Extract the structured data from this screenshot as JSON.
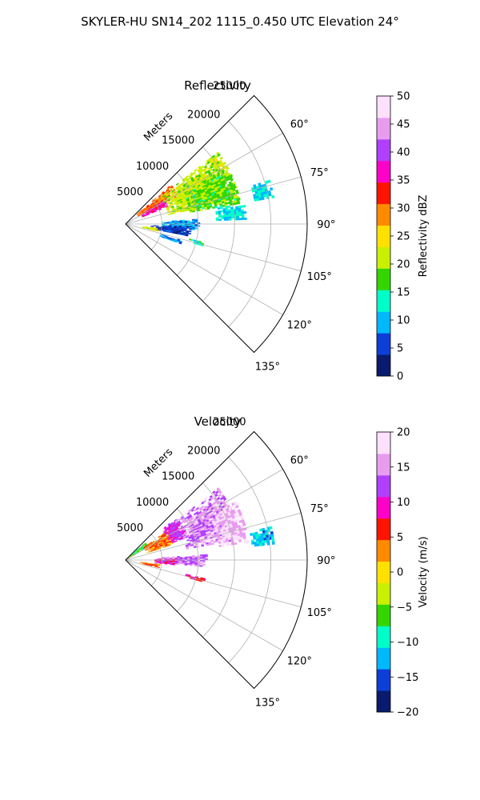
{
  "figure": {
    "title": "SKYLER-HU  SN14_202  1115_0.450 UTC Elevation 24°"
  },
  "chart_data": [
    {
      "type": "heatmap",
      "subtype": "polar-sector (PPI)",
      "title": "Reflectivity",
      "radial_label": "Meters",
      "radial_ticks": [
        5000,
        10000,
        15000,
        20000,
        25000
      ],
      "radial_tick_labels": [
        "5000",
        "10000",
        "15000",
        "20000",
        "25000"
      ],
      "azimuth_ticks": [
        60,
        75,
        90,
        105,
        120,
        135
      ],
      "azimuth_tick_labels": [
        "60°",
        "75°",
        "90°",
        "105°",
        "120°",
        "135°"
      ],
      "azimuth_range": [
        45,
        135
      ],
      "radial_range": [
        0,
        25000
      ],
      "grid": true,
      "colorbar": {
        "label": "Reflectivity dBZ",
        "range": [
          0,
          50
        ],
        "ticks": [
          0,
          5,
          10,
          15,
          20,
          25,
          30,
          35,
          40,
          45,
          50
        ],
        "tick_labels": [
          "0",
          "5",
          "10",
          "15",
          "20",
          "25",
          "30",
          "35",
          "40",
          "45",
          "50"
        ],
        "colormap": [
          "#0a1a6e",
          "#0d3fd6",
          "#00b8ff",
          "#00ffc8",
          "#33d600",
          "#c8f000",
          "#ffe000",
          "#ff8a00",
          "#ff1400",
          "#ff00c8",
          "#b040ff",
          "#e89cf0",
          "#fce0fc"
        ]
      },
      "echo_regions": [
        {
          "az": [
            49,
            62
          ],
          "r": [
            2000,
            8000
          ],
          "value": 30
        },
        {
          "az": [
            58,
            68
          ],
          "r": [
            2500,
            6500
          ],
          "value": 36
        },
        {
          "az": [
            52,
            78
          ],
          "r": [
            6000,
            16000
          ],
          "value": 21
        },
        {
          "az": [
            62,
            80
          ],
          "r": [
            9000,
            16000
          ],
          "value": 18
        },
        {
          "az": [
            80,
            88
          ],
          "r": [
            12500,
            16500
          ],
          "value": 12
        },
        {
          "az": [
            73,
            80
          ],
          "r": [
            18000,
            20500
          ],
          "value": 11
        },
        {
          "az": [
            86,
            95
          ],
          "r": [
            5000,
            10000
          ],
          "value": 9
        },
        {
          "az": [
            92,
            101
          ],
          "r": [
            3500,
            9000
          ],
          "value": 5
        },
        {
          "az": [
            97,
            103
          ],
          "r": [
            2000,
            4500
          ],
          "value": 22
        },
        {
          "az": [
            103,
            106
          ],
          "r": [
            9000,
            11000
          ],
          "value": 13
        },
        {
          "az": [
            106,
            110
          ],
          "r": [
            5000,
            8000
          ],
          "value": 8
        }
      ]
    },
    {
      "type": "heatmap",
      "subtype": "polar-sector (PPI)",
      "title": "Velocity",
      "radial_label": "Meters",
      "radial_ticks": [
        5000,
        10000,
        15000,
        20000,
        25000
      ],
      "radial_tick_labels": [
        "5000",
        "10000",
        "15000",
        "20000",
        "25000"
      ],
      "azimuth_ticks": [
        60,
        75,
        90,
        105,
        120,
        135
      ],
      "azimuth_tick_labels": [
        "60°",
        "75°",
        "90°",
        "105°",
        "120°",
        "135°"
      ],
      "azimuth_range": [
        45,
        135
      ],
      "radial_range": [
        0,
        25000
      ],
      "grid": true,
      "colorbar": {
        "label": "Velocity (m/s)",
        "range": [
          -20,
          20
        ],
        "ticks": [
          -20,
          -15,
          -10,
          -5,
          0,
          5,
          10,
          15,
          20
        ],
        "tick_labels": [
          "−20",
          "−15",
          "−10",
          "−5",
          "0",
          "5",
          "10",
          "15",
          "20"
        ],
        "colormap": [
          "#0a1a6e",
          "#0d3fd6",
          "#00b8ff",
          "#00ffc8",
          "#33d600",
          "#c8f000",
          "#ffe000",
          "#ff8a00",
          "#ff1400",
          "#ff00c8",
          "#b040ff",
          "#e89cf0",
          "#fce0fc"
        ]
      },
      "echo_regions": [
        {
          "az": [
            48,
            60
          ],
          "r": [
            500,
            3500
          ],
          "value": -6
        },
        {
          "az": [
            55,
            72
          ],
          "r": [
            3000,
            7000
          ],
          "value": 4
        },
        {
          "az": [
            50,
            70
          ],
          "r": [
            6500,
            9000
          ],
          "value": 11
        },
        {
          "az": [
            52,
            80
          ],
          "r": [
            8500,
            16000
          ],
          "value": 15
        },
        {
          "az": [
            62,
            82
          ],
          "r": [
            13000,
            17000
          ],
          "value": 17
        },
        {
          "az": [
            77,
            84
          ],
          "r": [
            17500,
            20500
          ],
          "value": -12
        },
        {
          "az": [
            86,
            95
          ],
          "r": [
            5000,
            11000
          ],
          "value": 14
        },
        {
          "az": [
            88,
            96
          ],
          "r": [
            4000,
            7000
          ],
          "value": 10
        },
        {
          "az": [
            97,
            103
          ],
          "r": [
            2000,
            4500
          ],
          "value": 4
        },
        {
          "az": [
            103,
            106
          ],
          "r": [
            8500,
            11000
          ],
          "value": 8
        }
      ]
    }
  ]
}
